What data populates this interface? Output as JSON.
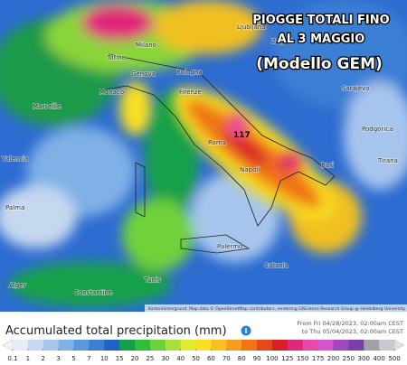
{
  "map_title": {
    "line1": "PIOGGE TOTALI FINO",
    "line2": "AL 3 MAGGIO",
    "line3": "(Modello GEM)"
  },
  "max_label": "117",
  "cities": [
    "Ljubljana",
    "Zagreb",
    "Torino",
    "Milano",
    "Genova",
    "Bologna",
    "Monaco",
    "Firenze",
    "Marseille",
    "Roma",
    "Napoli",
    "Bari",
    "Sarajevo",
    "Podgorica",
    "Tirana",
    "Palma",
    "Palermo",
    "Catania",
    "Alger",
    "Constantine",
    "Tunis",
    "Valencia"
  ],
  "attribution": "Kartenhintergrund: Map data © OpenStreetMap contributors, rendering GIScience Research Group @ Heidelberg University",
  "legend": {
    "title": "Accumulated total precipitation (mm)",
    "date_from": "From Fri 04/28/2023, 02:00am CEST",
    "date_to": "to Thu 05/04/2023, 02:00am CEST",
    "ticks": [
      0.1,
      1,
      2,
      3,
      5,
      7,
      10,
      15,
      20,
      25,
      30,
      40,
      50,
      60,
      70,
      80,
      90,
      100,
      125,
      150,
      175,
      200,
      250,
      300,
      400,
      500
    ],
    "colors": [
      "#e4ecf6",
      "#c6d8f0",
      "#a7c5ec",
      "#7fb0e6",
      "#5a97dc",
      "#3b7fd4",
      "#1f62c4",
      "#12a04a",
      "#2fbd3a",
      "#6fd13a",
      "#a9e03a",
      "#e0ec30",
      "#f8e020",
      "#f8c020",
      "#f89c1c",
      "#f07418",
      "#e84818",
      "#d81e28",
      "#e0287a",
      "#e848a8",
      "#d058c8",
      "#a048c0",
      "#7840a8",
      "#a0a0a8",
      "#c8c8d0"
    ]
  }
}
